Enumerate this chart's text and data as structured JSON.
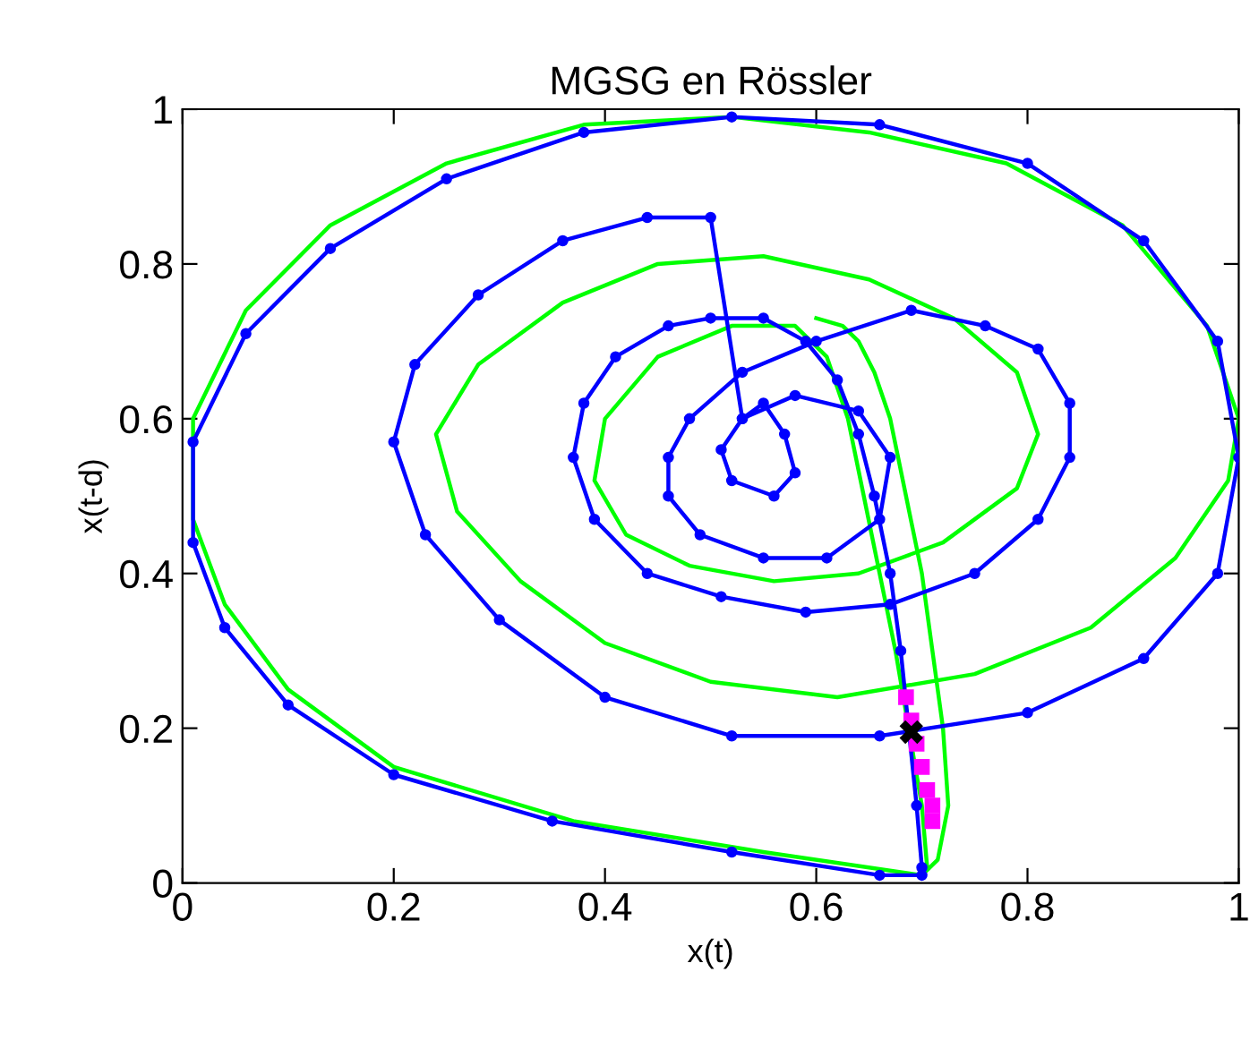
{
  "chart_data": {
    "type": "line",
    "title": "MGSG en Rössler",
    "xlabel": "x(t)",
    "ylabel": "x(t-d)",
    "xlim": [
      0,
      1
    ],
    "ylim": [
      0,
      1
    ],
    "xticks": [
      0,
      0.2,
      0.4,
      0.6,
      0.8,
      1
    ],
    "yticks": [
      0,
      0.2,
      0.4,
      0.6,
      0.8,
      1
    ],
    "grid": false,
    "series": [
      {
        "color": "#00ff00",
        "marker": "none",
        "x": [
          0.705,
          0.7,
          0.675,
          0.66,
          0.645,
          0.63,
          0.61,
          0.58,
          0.52,
          0.45,
          0.4,
          0.39,
          0.42,
          0.48,
          0.56,
          0.64,
          0.72,
          0.79,
          0.81,
          0.79,
          0.73,
          0.65,
          0.55,
          0.45,
          0.36,
          0.28,
          0.24,
          0.26,
          0.32,
          0.4,
          0.5,
          0.62,
          0.75,
          0.86,
          0.94,
          0.99,
          1.0,
          0.97,
          0.89,
          0.78,
          0.65,
          0.52,
          0.38,
          0.25,
          0.14,
          0.06,
          0.01,
          0.01,
          0.04,
          0.1,
          0.2,
          0.37,
          0.55,
          0.7,
          0.715,
          0.725,
          0.72,
          0.71,
          0.7,
          0.685,
          0.67,
          0.655,
          0.64,
          0.625,
          0.6
        ],
        "values": [
          0.02,
          0.1,
          0.3,
          0.4,
          0.5,
          0.6,
          0.68,
          0.72,
          0.72,
          0.68,
          0.6,
          0.52,
          0.45,
          0.41,
          0.39,
          0.4,
          0.44,
          0.51,
          0.58,
          0.66,
          0.73,
          0.78,
          0.81,
          0.8,
          0.75,
          0.67,
          0.58,
          0.48,
          0.39,
          0.31,
          0.26,
          0.24,
          0.27,
          0.33,
          0.42,
          0.52,
          0.6,
          0.72,
          0.85,
          0.93,
          0.97,
          0.99,
          0.98,
          0.93,
          0.85,
          0.74,
          0.6,
          0.47,
          0.36,
          0.25,
          0.15,
          0.08,
          0.04,
          0.01,
          0.03,
          0.1,
          0.2,
          0.3,
          0.4,
          0.5,
          0.6,
          0.66,
          0.7,
          0.72,
          0.73
        ]
      },
      {
        "color": "#0000ff",
        "marker": "circle",
        "x": [
          0.7,
          0.695,
          0.68,
          0.67,
          0.655,
          0.64,
          0.62,
          0.59,
          0.55,
          0.5,
          0.46,
          0.41,
          0.38,
          0.37,
          0.39,
          0.44,
          0.51,
          0.59,
          0.67,
          0.75,
          0.81,
          0.84,
          0.84,
          0.81,
          0.76,
          0.69,
          0.6,
          0.53,
          0.48,
          0.46,
          0.46,
          0.49,
          0.55,
          0.61,
          0.66,
          0.67,
          0.64,
          0.58,
          0.53,
          0.51,
          0.52,
          0.56,
          0.58,
          0.57,
          0.55,
          0.53,
          0.5,
          0.44,
          0.36,
          0.28,
          0.22,
          0.2,
          0.23,
          0.3,
          0.4,
          0.52,
          0.66,
          0.8,
          0.91,
          0.98,
          1.0,
          0.98,
          0.91,
          0.8,
          0.66,
          0.52,
          0.38,
          0.25,
          0.14,
          0.06,
          0.01,
          0.01,
          0.04,
          0.1,
          0.2,
          0.35,
          0.52,
          0.66,
          0.7
        ],
        "values": [
          0.02,
          0.1,
          0.3,
          0.4,
          0.5,
          0.58,
          0.65,
          0.7,
          0.73,
          0.73,
          0.72,
          0.68,
          0.62,
          0.55,
          0.47,
          0.4,
          0.37,
          0.35,
          0.36,
          0.4,
          0.47,
          0.55,
          0.62,
          0.69,
          0.72,
          0.74,
          0.7,
          0.66,
          0.6,
          0.55,
          0.5,
          0.45,
          0.42,
          0.42,
          0.47,
          0.55,
          0.61,
          0.63,
          0.6,
          0.56,
          0.52,
          0.5,
          0.53,
          0.58,
          0.62,
          0.6,
          0.86,
          0.86,
          0.83,
          0.76,
          0.67,
          0.57,
          0.45,
          0.34,
          0.24,
          0.19,
          0.19,
          0.22,
          0.29,
          0.4,
          0.55,
          0.7,
          0.83,
          0.93,
          0.98,
          0.99,
          0.97,
          0.91,
          0.82,
          0.71,
          0.57,
          0.44,
          0.33,
          0.23,
          0.14,
          0.08,
          0.04,
          0.01,
          0.01
        ]
      },
      {
        "type": "scatter",
        "color": "#ff00ff",
        "marker": "square",
        "x": [
          0.685,
          0.69,
          0.695,
          0.7,
          0.705,
          0.71,
          0.71
        ],
        "values": [
          0.24,
          0.21,
          0.18,
          0.15,
          0.12,
          0.1,
          0.08
        ]
      },
      {
        "type": "scatter",
        "color": "#000000",
        "marker": "cross",
        "x": [
          0.69
        ],
        "values": [
          0.195
        ]
      }
    ]
  }
}
